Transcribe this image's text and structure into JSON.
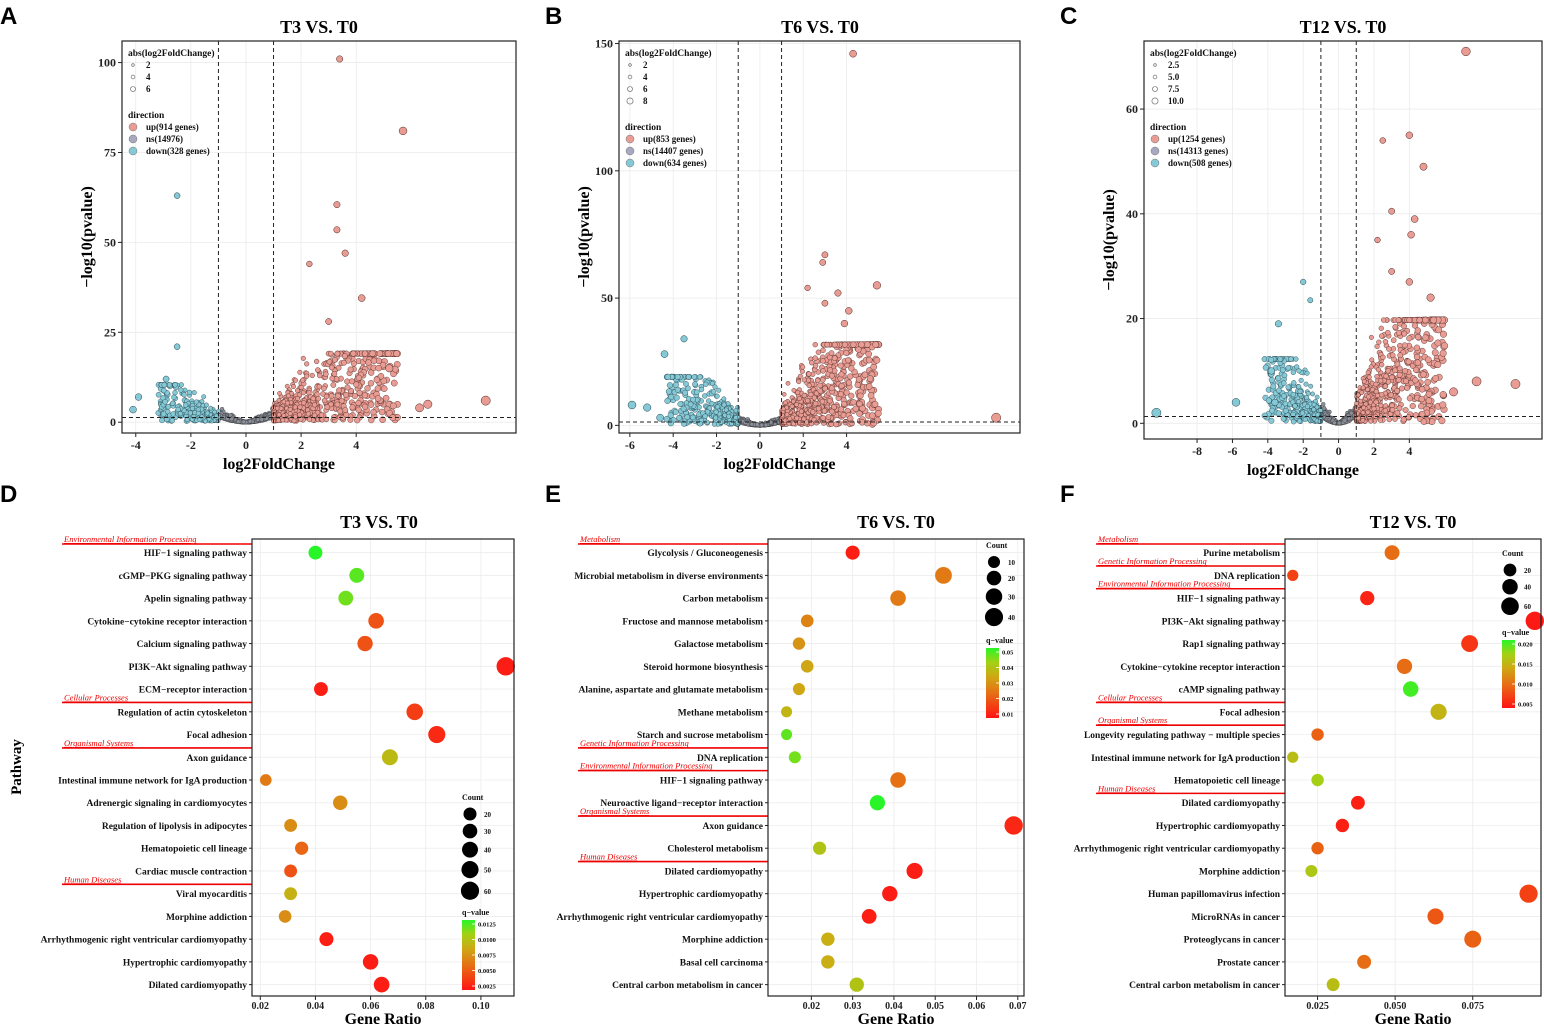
{
  "chart_data": [
    {
      "type": "scatter",
      "panel": "A",
      "title": "T3 VS. T0",
      "xlabel": "log2FoldChange",
      "ylabel": "−log10(pvalue)",
      "xlim": [
        -4.5,
        9.8
      ],
      "ylim": [
        -3,
        106
      ],
      "xticks": [
        -4,
        -2,
        0,
        2,
        4
      ],
      "yticks": [
        0,
        25,
        50,
        75,
        100
      ],
      "vlines": [
        -1,
        1
      ],
      "hline": 1.3,
      "size_legend_title": "abs(log2FoldChange)",
      "size_legend": [
        "2",
        "4",
        "6"
      ],
      "dir_legend_title": "direction",
      "dir_legend": [
        "up(914 genes)",
        "ns(14976)",
        "down(328 genes)"
      ],
      "up": [
        [
          3.4,
          101
        ],
        [
          5.7,
          81
        ],
        [
          3.3,
          60.5
        ],
        [
          3.3,
          53.5
        ],
        [
          3.6,
          47
        ],
        [
          2.3,
          44
        ],
        [
          4.2,
          34.5
        ],
        [
          3.0,
          28
        ],
        [
          5.2,
          15
        ],
        [
          8.7,
          6
        ],
        [
          6.3,
          4
        ],
        [
          6.6,
          5
        ]
      ],
      "down": [
        [
          -2.5,
          63
        ],
        [
          -2.5,
          21
        ],
        [
          -2.9,
          12
        ],
        [
          -3.9,
          7
        ],
        [
          -4.1,
          3.5
        ]
      ]
    },
    {
      "type": "scatter",
      "panel": "B",
      "title": "T6 VS. T0",
      "xlabel": "log2FoldChange",
      "ylabel": "−log10(pvalue)",
      "xlim": [
        -6.5,
        12
      ],
      "ylim": [
        -3,
        151
      ],
      "xticks": [
        -6,
        -4,
        -2,
        0,
        2,
        4
      ],
      "yticks": [
        0,
        50,
        100,
        150
      ],
      "vlines": [
        -1,
        1
      ],
      "hline": 1.3,
      "size_legend_title": "abs(log2FoldChange)",
      "size_legend": [
        "2",
        "4",
        "6",
        "8"
      ],
      "dir_legend_title": "direction",
      "dir_legend": [
        "up(853 genes)",
        "ns(14407 genes)",
        "down(634 genes)"
      ],
      "up": [
        [
          4.3,
          146
        ],
        [
          3.0,
          67
        ],
        [
          2.9,
          64
        ],
        [
          5.4,
          55
        ],
        [
          2.2,
          54
        ],
        [
          3.6,
          52
        ],
        [
          3.0,
          48
        ],
        [
          4.1,
          45
        ],
        [
          3.9,
          40
        ],
        [
          10.9,
          3
        ]
      ],
      "down": [
        [
          -4.4,
          28
        ],
        [
          -3.5,
          34
        ],
        [
          -5.2,
          7
        ],
        [
          -5.9,
          8
        ],
        [
          -4.6,
          3
        ]
      ]
    },
    {
      "type": "scatter",
      "panel": "C",
      "title": "T12 VS. T0",
      "xlabel": "log2FoldChange",
      "ylabel": "−log10(pvalue)",
      "xlim": [
        -11,
        11.5
      ],
      "ylim": [
        -3,
        73
      ],
      "xticks": [
        -8,
        -6,
        -4,
        -2,
        0,
        2,
        4
      ],
      "yticks": [
        0,
        20,
        40,
        60
      ],
      "vlines": [
        -1,
        1
      ],
      "hline": 1.3,
      "size_legend_title": "abs(log2FoldChange)",
      "size_legend": [
        "2.5",
        "5.0",
        "7.5",
        "10.0"
      ],
      "dir_legend_title": "direction",
      "dir_legend": [
        "up(1254 genes)",
        "ns(14313 genes)",
        "down(508 genes)"
      ],
      "up": [
        [
          7.2,
          71
        ],
        [
          4.0,
          55
        ],
        [
          4.8,
          49
        ],
        [
          2.5,
          54
        ],
        [
          4.3,
          39
        ],
        [
          3.0,
          40.5
        ],
        [
          4.1,
          36
        ],
        [
          2.2,
          35
        ],
        [
          4.0,
          27
        ],
        [
          5.2,
          24
        ],
        [
          3.0,
          29
        ],
        [
          7.8,
          8
        ],
        [
          10.0,
          7.5
        ],
        [
          6.5,
          6
        ]
      ],
      "down": [
        [
          -2.0,
          27
        ],
        [
          -3.4,
          19
        ],
        [
          -1.6,
          23.5
        ],
        [
          -10.3,
          2
        ],
        [
          -5.8,
          4
        ],
        [
          -3.8,
          10
        ],
        [
          -3.6,
          4
        ]
      ]
    },
    {
      "type": "scatter",
      "panel": "D",
      "title": "T3 VS. T0",
      "xlabel": "Gene Ratio",
      "ylabel": "Pathway",
      "xlim": [
        0.017,
        0.112
      ],
      "xticks": [
        0.02,
        0.04,
        0.06,
        0.08,
        0.1
      ],
      "xticklabels": [
        "0.02",
        "0.04",
        "0.06",
        "0.08",
        "0.10"
      ],
      "count_legend": [
        20,
        30,
        40,
        50,
        60
      ],
      "q_title": "q−value",
      "q_ticks": [
        "0.0125",
        "0.0100",
        "0.0075",
        "0.0050",
        "0.0025"
      ],
      "q_max": 0.0125,
      "categories": [
        {
          "label": "Environmental Information Processing",
          "before": 0
        },
        {
          "label": "Cellular Processes",
          "before": 7
        },
        {
          "label": "Organismal Systems",
          "before": 9
        },
        {
          "label": "Human Diseases",
          "before": 15
        }
      ],
      "pathways": [
        {
          "name": "HIF−1 signaling pathway",
          "ratio": 0.04,
          "count": 25,
          "q": 0.0125
        },
        {
          "name": "cGMP−PKG signaling pathway",
          "ratio": 0.055,
          "count": 32,
          "q": 0.0115
        },
        {
          "name": "Apelin signaling pathway",
          "ratio": 0.051,
          "count": 31,
          "q": 0.011
        },
        {
          "name": "Cytokine−cytokine receptor interaction",
          "ratio": 0.062,
          "count": 37,
          "q": 0.003
        },
        {
          "name": "Calcium signaling pathway",
          "ratio": 0.058,
          "count": 35,
          "q": 0.003
        },
        {
          "name": "PI3K−Akt signaling pathway",
          "ratio": 0.109,
          "count": 62,
          "q": 0.0005
        },
        {
          "name": "ECM−receptor interaction",
          "ratio": 0.042,
          "count": 25,
          "q": 0.0005
        },
        {
          "name": "Regulation of actin cytoskeleton",
          "ratio": 0.076,
          "count": 45,
          "q": 0.002
        },
        {
          "name": "Focal adhesion",
          "ratio": 0.084,
          "count": 50,
          "q": 0.001
        },
        {
          "name": "Axon guidance",
          "ratio": 0.067,
          "count": 40,
          "q": 0.0085
        },
        {
          "name": "Intestinal immune network for IgA production",
          "ratio": 0.022,
          "count": 13,
          "q": 0.005
        },
        {
          "name": "Adrenergic signaling in cardiomyocytes",
          "ratio": 0.049,
          "count": 29,
          "q": 0.006
        },
        {
          "name": "Regulation of lipolysis in adipocytes",
          "ratio": 0.031,
          "count": 19,
          "q": 0.006
        },
        {
          "name": "Hematopoietic cell lineage",
          "ratio": 0.035,
          "count": 21,
          "q": 0.004
        },
        {
          "name": "Cardiac muscle contraction",
          "ratio": 0.031,
          "count": 19,
          "q": 0.003
        },
        {
          "name": "Viral myocarditis",
          "ratio": 0.031,
          "count": 19,
          "q": 0.008
        },
        {
          "name": "Morphine addiction",
          "ratio": 0.029,
          "count": 18,
          "q": 0.006
        },
        {
          "name": "Arrhythmogenic right ventricular cardiomyopathy",
          "ratio": 0.044,
          "count": 26,
          "q": 0.0005
        },
        {
          "name": "Hypertrophic cardiomyopathy",
          "ratio": 0.06,
          "count": 36,
          "q": 0.0005
        },
        {
          "name": "Dilated cardiomyopathy",
          "ratio": 0.064,
          "count": 38,
          "q": 0.0005
        }
      ]
    },
    {
      "type": "scatter",
      "panel": "E",
      "title": "T6 VS. T0",
      "xlabel": "Gene Ratio",
      "ylabel": "",
      "xlim": [
        0.0095,
        0.0715
      ],
      "xticks": [
        0.02,
        0.03,
        0.04,
        0.05,
        0.06,
        0.07
      ],
      "xticklabels": [
        "0.02",
        "0.03",
        "0.04",
        "0.05",
        "0.06",
        "0.07"
      ],
      "count_legend": [
        10,
        20,
        30,
        40
      ],
      "q_title": "q−value",
      "q_ticks": [
        "0.05",
        "0.04",
        "0.03",
        "0.02",
        "0.01"
      ],
      "q_max": 0.055,
      "categories": [
        {
          "label": "Metabolism",
          "before": 0
        },
        {
          "label": "Genetic Information Processing",
          "before": 9
        },
        {
          "label": "Environmental Information Processing",
          "before": 10
        },
        {
          "label": "Organismal Systems",
          "before": 12
        },
        {
          "label": "Human Diseases",
          "before": 14
        }
      ],
      "pathways": [
        {
          "name": "Glycolysis / Gluconeogenesis",
          "ratio": 0.03,
          "count": 18,
          "q": 0.002
        },
        {
          "name": "Microbial metabolism in diverse environments",
          "ratio": 0.052,
          "count": 32,
          "q": 0.022
        },
        {
          "name": "Carbon metabolism",
          "ratio": 0.041,
          "count": 25,
          "q": 0.022
        },
        {
          "name": "Fructose and mannose metabolism",
          "ratio": 0.019,
          "count": 12,
          "q": 0.024
        },
        {
          "name": "Galactose metabolism",
          "ratio": 0.017,
          "count": 11,
          "q": 0.028
        },
        {
          "name": "Steroid hormone biosynthesis",
          "ratio": 0.019,
          "count": 12,
          "q": 0.032
        },
        {
          "name": "Alanine, aspartate and glutamate metabolism",
          "ratio": 0.017,
          "count": 10,
          "q": 0.032
        },
        {
          "name": "Methane metabolism",
          "ratio": 0.014,
          "count": 7,
          "q": 0.036
        },
        {
          "name": "Starch and sucrose metabolism",
          "ratio": 0.014,
          "count": 7,
          "q": 0.05
        },
        {
          "name": "DNA replication",
          "ratio": 0.016,
          "count": 10,
          "q": 0.048
        },
        {
          "name": "HIF−1 signaling pathway",
          "ratio": 0.041,
          "count": 25,
          "q": 0.02
        },
        {
          "name": "Neuroactive ligand−receptor interaction",
          "ratio": 0.036,
          "count": 23,
          "q": 0.055
        },
        {
          "name": "Axon guidance",
          "ratio": 0.069,
          "count": 42,
          "q": 0.004
        },
        {
          "name": "Cholesterol metabolism",
          "ratio": 0.022,
          "count": 14,
          "q": 0.04
        },
        {
          "name": "Dilated cardiomyopathy",
          "ratio": 0.045,
          "count": 28,
          "q": 0.002
        },
        {
          "name": "Hypertrophic cardiomyopathy",
          "ratio": 0.039,
          "count": 24,
          "q": 0.002
        },
        {
          "name": "Arrhythmogenic right ventricular cardiomyopathy",
          "ratio": 0.034,
          "count": 21,
          "q": 0.002
        },
        {
          "name": "Morphine addiction",
          "ratio": 0.024,
          "count": 15,
          "q": 0.034
        },
        {
          "name": "Basal cell carcinoma",
          "ratio": 0.024,
          "count": 15,
          "q": 0.034
        },
        {
          "name": "Central carbon metabolism in cancer",
          "ratio": 0.031,
          "count": 19,
          "q": 0.04
        }
      ]
    },
    {
      "type": "scatter",
      "panel": "F",
      "title": "T12 VS. T0",
      "xlabel": "Gene Ratio",
      "ylabel": "",
      "xlim": [
        0.0145,
        0.097
      ],
      "xticks": [
        0.025,
        0.05,
        0.075
      ],
      "xticklabels": [
        "0.025",
        "0.050",
        "0.075"
      ],
      "count_legend": [
        20,
        40,
        60
      ],
      "q_title": "q−value",
      "q_ticks": [
        "0.020",
        "0.015",
        "0.010",
        "0.005"
      ],
      "q_max": 0.023,
      "categories": [
        {
          "label": "Metabolism",
          "before": 0
        },
        {
          "label": "Genetic Information Processing",
          "before": 1
        },
        {
          "label": "Environmental Information Processing",
          "before": 2
        },
        {
          "label": "Cellular Processes",
          "before": 7
        },
        {
          "label": "Organismal Systems",
          "before": 8
        },
        {
          "label": "Human Diseases",
          "before": 11
        }
      ],
      "pathways": [
        {
          "name": "Purine metabolism",
          "ratio": 0.049,
          "count": 35,
          "q": 0.008
        },
        {
          "name": "DNA replication",
          "ratio": 0.017,
          "count": 12,
          "q": 0.004
        },
        {
          "name": "HIF−1 signaling pathway",
          "ratio": 0.041,
          "count": 30,
          "q": 0.0015
        },
        {
          "name": "PI3K−Akt signaling pathway",
          "ratio": 0.095,
          "count": 68,
          "q": 0.0005
        },
        {
          "name": "Rap1 signaling pathway",
          "ratio": 0.074,
          "count": 52,
          "q": 0.003
        },
        {
          "name": "Cytokine−cytokine receptor interaction",
          "ratio": 0.053,
          "count": 38,
          "q": 0.008
        },
        {
          "name": "cAMP signaling pathway",
          "ratio": 0.055,
          "count": 40,
          "q": 0.022
        },
        {
          "name": "Focal adhesion",
          "ratio": 0.064,
          "count": 46,
          "q": 0.015
        },
        {
          "name": "Longevity regulating pathway − multiple species",
          "ratio": 0.025,
          "count": 18,
          "q": 0.007
        },
        {
          "name": "Intestinal immune network for IgA production",
          "ratio": 0.017,
          "count": 12,
          "q": 0.016
        },
        {
          "name": "Hematopoietic cell lineage",
          "ratio": 0.025,
          "count": 18,
          "q": 0.018
        },
        {
          "name": "Dilated cardiomyopathy",
          "ratio": 0.038,
          "count": 27,
          "q": 0.001
        },
        {
          "name": "Hypertrophic cardiomyopathy",
          "ratio": 0.033,
          "count": 24,
          "q": 0.001
        },
        {
          "name": "Arrhythmogenic right ventricular cardiomyopathy",
          "ratio": 0.025,
          "count": 18,
          "q": 0.007
        },
        {
          "name": "Morphine addiction",
          "ratio": 0.023,
          "count": 16,
          "q": 0.017
        },
        {
          "name": "Human papillomavirus infection",
          "ratio": 0.093,
          "count": 66,
          "q": 0.004
        },
        {
          "name": "MicroRNAs in cancer",
          "ratio": 0.063,
          "count": 45,
          "q": 0.006
        },
        {
          "name": "Proteoglycans in cancer",
          "ratio": 0.075,
          "count": 53,
          "q": 0.007
        },
        {
          "name": "Prostate cancer",
          "ratio": 0.04,
          "count": 28,
          "q": 0.008
        },
        {
          "name": "Central carbon metabolism in cancer",
          "ratio": 0.03,
          "count": 21,
          "q": 0.016
        }
      ]
    }
  ]
}
